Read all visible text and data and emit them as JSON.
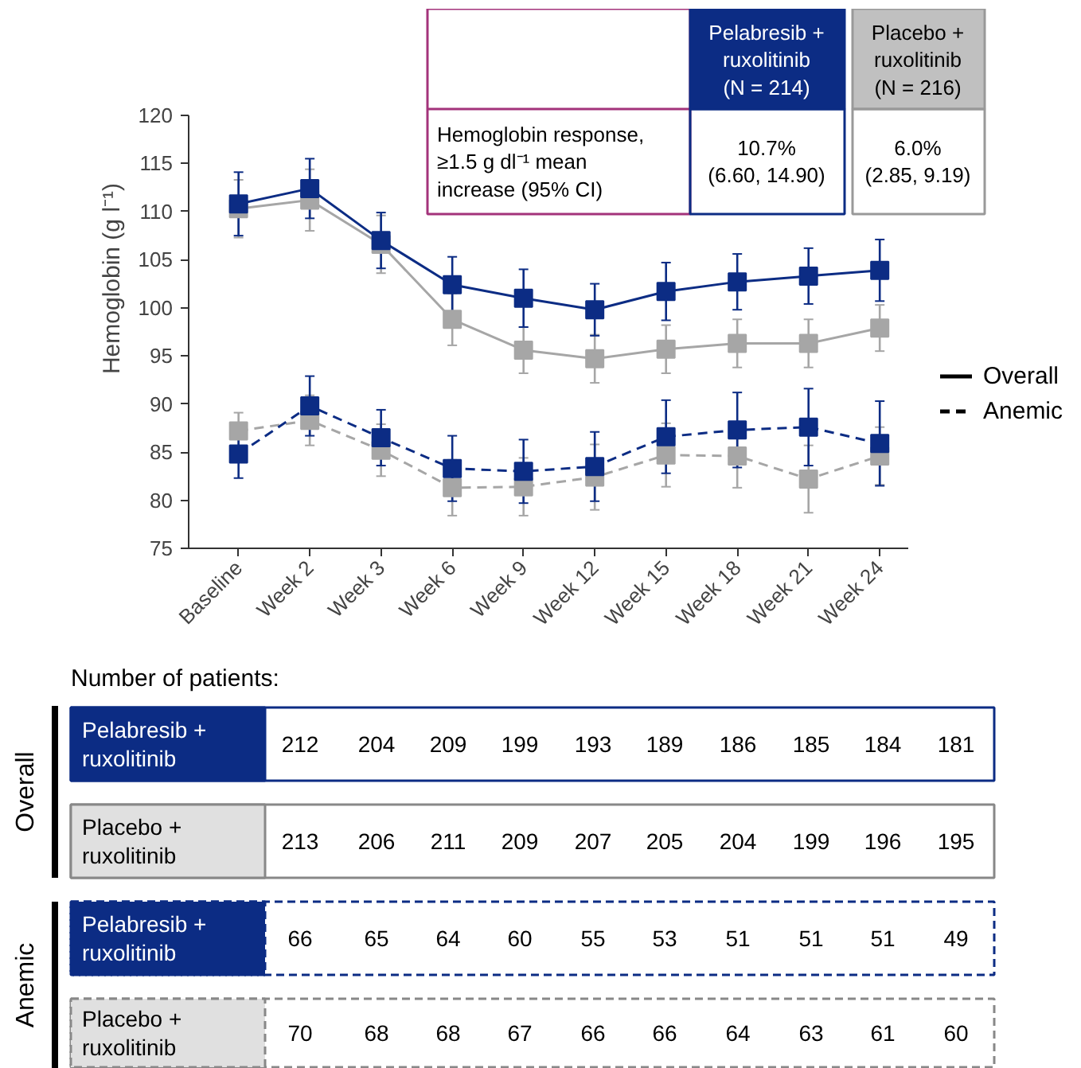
{
  "chart_data": {
    "type": "line",
    "ylabel": "Hemoglobin (g l⁻¹)",
    "categories": [
      "Baseline",
      "Week 2",
      "Week 3",
      "Week 6",
      "Week 9",
      "Week 12",
      "Week 15",
      "Week 18",
      "Week 21",
      "Week 24"
    ],
    "ylim": [
      75,
      120
    ],
    "yticks": [
      75,
      80,
      85,
      90,
      95,
      100,
      105,
      110,
      115,
      120
    ],
    "marker": "square",
    "grid": false,
    "series": [
      {
        "color": "#0c2c84",
        "line_style": "solid",
        "values": [
          110.8,
          112.4,
          107.0,
          102.4,
          101.0,
          99.8,
          101.7,
          102.7,
          103.3,
          103.9
        ],
        "errors": [
          3.3,
          3.1,
          2.9,
          2.9,
          3.0,
          2.7,
          3.0,
          2.9,
          2.9,
          3.2
        ]
      },
      {
        "color": "#a6a6a6",
        "line_style": "solid",
        "values": [
          110.3,
          111.2,
          106.6,
          98.8,
          95.6,
          94.7,
          95.7,
          96.3,
          96.3,
          97.9
        ],
        "errors": [
          3.0,
          3.2,
          3.0,
          2.7,
          2.4,
          2.5,
          2.5,
          2.5,
          2.5,
          2.4
        ]
      },
      {
        "color": "#0c2c84",
        "line_style": "dashed",
        "values": [
          84.8,
          89.8,
          86.5,
          83.3,
          83.0,
          83.5,
          86.6,
          87.3,
          87.6,
          85.9
        ],
        "errors": [
          2.5,
          3.1,
          2.9,
          3.4,
          3.3,
          3.6,
          3.8,
          3.9,
          4.0,
          4.4
        ]
      },
      {
        "color": "#a6a6a6",
        "line_style": "dashed",
        "values": [
          87.2,
          88.3,
          85.2,
          81.3,
          81.4,
          82.4,
          84.7,
          84.6,
          82.2,
          84.6
        ],
        "errors": [
          1.9,
          2.6,
          2.7,
          2.9,
          3.0,
          3.4,
          3.3,
          3.3,
          3.5,
          3.0
        ]
      }
    ],
    "annotations": [
      "Pelabresib +\nruxolitinib\n(N = 214)",
      "Placebo +\nruxolitinib\n(N = 216)",
      "Hemoglobin response,\n≥1.5 g dl⁻¹ mean\nincrease (95% CI)",
      "10.7%\n(6.60, 14.90)",
      "6.0%\n(2.85, 9.19)",
      "Overall",
      "Anemic",
      "Number of patients:",
      "Overall",
      "Anemic",
      "Pelabresib +\nruxolitinib",
      "Placebo +\nruxolitinib",
      "Pelabresib +\nruxolitinib",
      "Placebo +\nruxolitinib",
      "212",
      "204",
      "209",
      "199",
      "193",
      "189",
      "186",
      "185",
      "184",
      "181",
      "213",
      "206",
      "211",
      "209",
      "207",
      "205",
      "204",
      "199",
      "196",
      "195",
      "66",
      "65",
      "64",
      "60",
      "55",
      "53",
      "51",
      "51",
      "51",
      "49",
      "70",
      "68",
      "68",
      "67",
      "66",
      "66",
      "64",
      "63",
      "61",
      "60"
    ]
  }
}
